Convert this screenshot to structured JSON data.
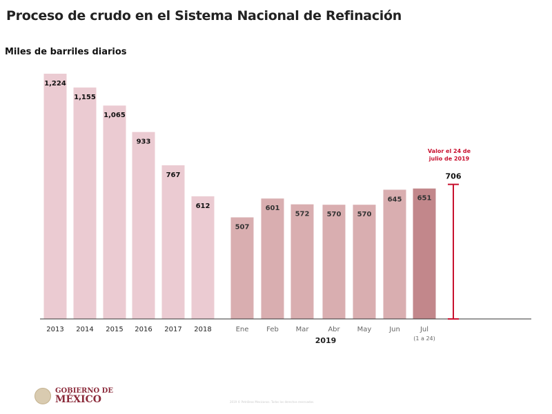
{
  "header": {
    "title": "Proceso de crudo en el Sistema Nacional de Refinación"
  },
  "chart_data": {
    "type": "bar",
    "title": "Proceso de crudo en el Sistema Nacional de Refinación",
    "ylabel": "Miles de barriles diarios",
    "categories": [
      "2013",
      "2014",
      "2015",
      "2016",
      "2017",
      "2018",
      "Ene",
      "Feb",
      "Mar",
      "Abr",
      "May",
      "Jun",
      "Jul"
    ],
    "values": [
      1224,
      1155,
      1065,
      933,
      767,
      612,
      507,
      601,
      572,
      570,
      570,
      645,
      651
    ],
    "labels": [
      "1,224",
      "1,155",
      "1,065",
      "933",
      "767",
      "612",
      "507",
      "601",
      "572",
      "570",
      "570",
      "645",
      "651"
    ],
    "sub_label": {
      "index": 12,
      "text": "(1 a 24)"
    },
    "group_label": "2019",
    "annotation": {
      "value": 706,
      "label": "706",
      "note_line1": "Valor el 24 de",
      "note_line2": "julio de 2019"
    },
    "colors": {
      "annual": "#ebcbd2",
      "monthly": "#d9aeb0",
      "latest": "#c2878b",
      "marker": "#c8102e"
    },
    "ylim": [
      0,
      1224
    ]
  },
  "footer": {
    "logo_line1": "GOBIERNO DE",
    "logo_line2": "MÉXICO",
    "copyright": "2019 © Petróleos Mexicanos. Todos los derechos reservados."
  }
}
